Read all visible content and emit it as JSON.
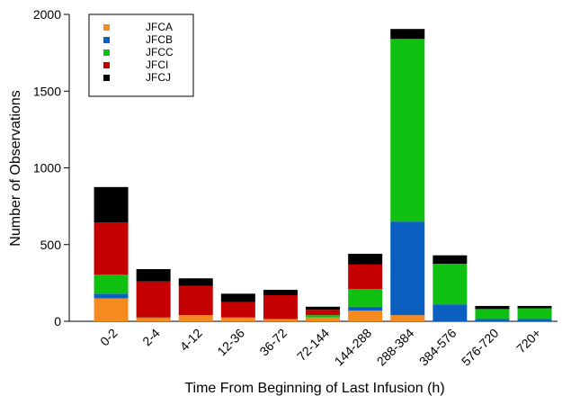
{
  "chart_data": {
    "type": "bar",
    "stacked": true,
    "xlabel": "Time From Beginning of Last Infusion (h)",
    "ylabel": "Number of Observations",
    "ylim": [
      0,
      2000
    ],
    "yticks": [
      0,
      500,
      1000,
      1500,
      2000
    ],
    "categories": [
      "0-2",
      "2-4",
      "4-12",
      "12-36",
      "36-72",
      "72-144",
      "144-288",
      "288-384",
      "384-576",
      "576-720",
      "720+"
    ],
    "series": [
      {
        "name": "JFCA",
        "color": "#f58a1f",
        "values": [
          150,
          20,
          40,
          25,
          15,
          25,
          70,
          40,
          0,
          0,
          0
        ]
      },
      {
        "name": "JFCB",
        "color": "#0a5fc1",
        "values": [
          30,
          0,
          0,
          0,
          0,
          0,
          25,
          610,
          110,
          15,
          15
        ]
      },
      {
        "name": "JFCC",
        "color": "#10c010",
        "values": [
          125,
          5,
          0,
          0,
          0,
          15,
          115,
          1190,
          265,
          65,
          70
        ]
      },
      {
        "name": "JFCI",
        "color": "#c40000",
        "values": [
          340,
          235,
          190,
          100,
          155,
          35,
          160,
          0,
          0,
          0,
          0
        ]
      },
      {
        "name": "JFCJ",
        "color": "#000000",
        "values": [
          230,
          80,
          50,
          55,
          35,
          20,
          70,
          65,
          55,
          20,
          15
        ]
      }
    ],
    "legend_position": "top-left",
    "grid": false
  }
}
